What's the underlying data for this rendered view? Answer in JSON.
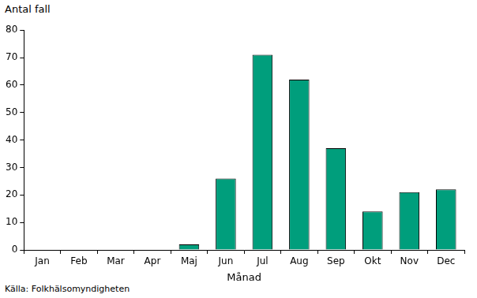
{
  "chart_data": {
    "type": "bar",
    "y_label": "Antal fall",
    "x_label": "Månad",
    "source": "Källa: Folkhälsomyndigheten",
    "categories": [
      "Jan",
      "Feb",
      "Mar",
      "Apr",
      "Maj",
      "Jun",
      "Jul",
      "Aug",
      "Sep",
      "Okt",
      "Nov",
      "Dec"
    ],
    "values": [
      0,
      0,
      0,
      0,
      2,
      26,
      71,
      62,
      37,
      14,
      21,
      22
    ],
    "color": "#009e7c",
    "ylim": [
      0,
      80
    ],
    "yticks": [
      0,
      10,
      20,
      30,
      40,
      50,
      60,
      70,
      80
    ],
    "grid": false,
    "data_labels": false
  }
}
